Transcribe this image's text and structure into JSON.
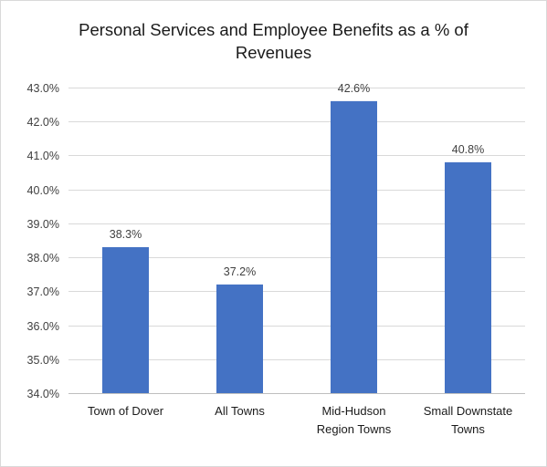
{
  "chart_data": {
    "type": "bar",
    "title_lines": [
      "Personal Services and Employee Benefits as a % of",
      "Revenues"
    ],
    "categories": [
      [
        "Town of Dover"
      ],
      [
        "All Towns"
      ],
      [
        "Mid-Hudson",
        "Region Towns"
      ],
      [
        "Small Downstate",
        "Towns"
      ]
    ],
    "values": [
      38.3,
      37.2,
      42.6,
      40.8
    ],
    "data_labels": [
      "38.3%",
      "37.2%",
      "42.6%",
      "40.8%"
    ],
    "ylim": [
      34.0,
      43.0
    ],
    "yticks": [
      34.0,
      35.0,
      36.0,
      37.0,
      38.0,
      39.0,
      40.0,
      41.0,
      42.0,
      43.0
    ],
    "ytick_labels": [
      "34.0%",
      "35.0%",
      "36.0%",
      "37.0%",
      "38.0%",
      "39.0%",
      "40.0%",
      "41.0%",
      "42.0%",
      "43.0%"
    ],
    "grid": true,
    "bar_color": "#4472c4",
    "grid_color": "#d9d9d9"
  }
}
